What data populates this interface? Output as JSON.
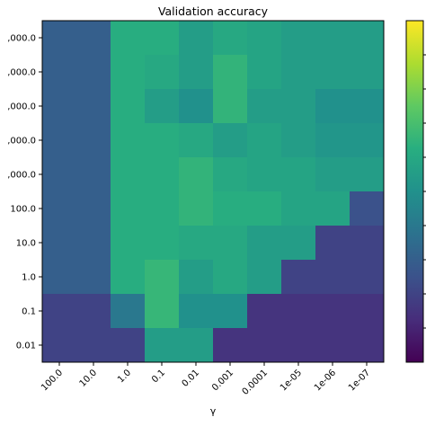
{
  "chart_data": {
    "type": "heatmap",
    "title": "Validation accuracy",
    "xlabel": "γ",
    "ylabel": "",
    "x_categories": [
      "100.0",
      "10.0",
      "1.0",
      "0.1",
      "0.01",
      "0.001",
      "0.0001",
      "1e-05",
      "1e-06",
      "1e-07"
    ],
    "y_categories": [
      ",000.0",
      ",000.0",
      ",000.0",
      ",000.0",
      ",000.0",
      "100.0",
      "10.0",
      "1.0",
      "0.1",
      "0.01"
    ],
    "values": [
      [
        0.3,
        0.3,
        0.62,
        0.62,
        0.55,
        0.6,
        0.58,
        0.55,
        0.55,
        0.55
      ],
      [
        0.3,
        0.3,
        0.62,
        0.6,
        0.55,
        0.65,
        0.58,
        0.55,
        0.55,
        0.55
      ],
      [
        0.3,
        0.3,
        0.62,
        0.55,
        0.5,
        0.65,
        0.55,
        0.55,
        0.5,
        0.5
      ],
      [
        0.3,
        0.3,
        0.62,
        0.62,
        0.6,
        0.55,
        0.58,
        0.55,
        0.52,
        0.52
      ],
      [
        0.3,
        0.3,
        0.62,
        0.62,
        0.65,
        0.6,
        0.58,
        0.58,
        0.55,
        0.55
      ],
      [
        0.3,
        0.3,
        0.62,
        0.62,
        0.65,
        0.62,
        0.62,
        0.58,
        0.58,
        0.25
      ],
      [
        0.3,
        0.3,
        0.62,
        0.62,
        0.6,
        0.6,
        0.55,
        0.55,
        0.2,
        0.2
      ],
      [
        0.3,
        0.3,
        0.62,
        0.66,
        0.55,
        0.6,
        0.55,
        0.2,
        0.2,
        0.2
      ],
      [
        0.2,
        0.2,
        0.4,
        0.66,
        0.5,
        0.5,
        0.15,
        0.15,
        0.15,
        0.15
      ],
      [
        0.2,
        0.2,
        0.2,
        0.55,
        0.55,
        0.15,
        0.15,
        0.15,
        0.15,
        0.15
      ]
    ],
    "colormap": "viridis",
    "vmin": 0.0,
    "vmax": 1.0,
    "colorbar": true,
    "grid": false
  }
}
